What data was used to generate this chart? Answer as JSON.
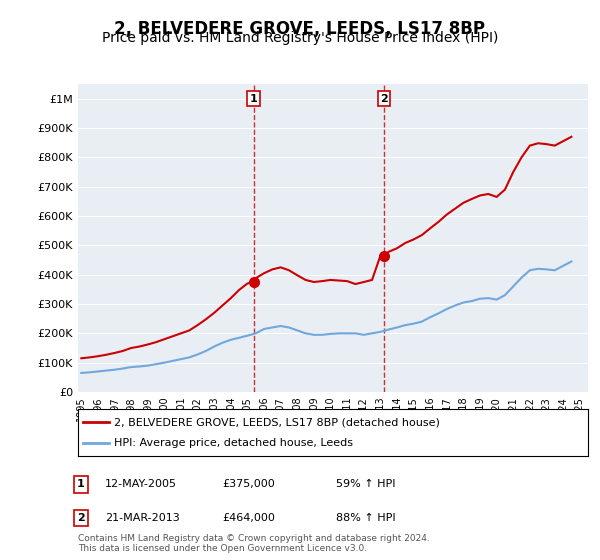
{
  "title": "2, BELVEDERE GROVE, LEEDS, LS17 8BP",
  "subtitle": "Price paid vs. HM Land Registry's House Price Index (HPI)",
  "title_fontsize": 12,
  "subtitle_fontsize": 10,
  "background_color": "#ffffff",
  "plot_bg_color": "#e8eef4",
  "grid_color": "#ffffff",
  "ylim": [
    0,
    1050000
  ],
  "yticks": [
    0,
    100000,
    200000,
    300000,
    400000,
    500000,
    600000,
    700000,
    800000,
    900000,
    1000000
  ],
  "ytick_labels": [
    "£0",
    "£100K",
    "£200K",
    "£300K",
    "£400K",
    "£500K",
    "£600K",
    "£700K",
    "£800K",
    "£900K",
    "£1M"
  ],
  "hpi_line_color": "#6fa8dc",
  "price_line_color": "#cc0000",
  "marker_color": "#cc0000",
  "vline_color": "#cc0000",
  "legend_label_red": "2, BELVEDERE GROVE, LEEDS, LS17 8BP (detached house)",
  "legend_label_blue": "HPI: Average price, detached house, Leeds",
  "sale1_label": "1",
  "sale1_date": "12-MAY-2005",
  "sale1_price": "£375,000",
  "sale1_hpi": "59% ↑ HPI",
  "sale1_year": 2005.37,
  "sale1_value": 375000,
  "sale2_label": "2",
  "sale2_date": "21-MAR-2013",
  "sale2_price": "£464,000",
  "sale2_hpi": "88% ↑ HPI",
  "sale2_year": 2013.22,
  "sale2_value": 464000,
  "footer": "Contains HM Land Registry data © Crown copyright and database right 2024.\nThis data is licensed under the Open Government Licence v3.0.",
  "hpi_years": [
    1995,
    1995.5,
    1996,
    1996.5,
    1997,
    1997.5,
    1998,
    1998.5,
    1999,
    1999.5,
    2000,
    2000.5,
    2001,
    2001.5,
    2002,
    2002.5,
    2003,
    2003.5,
    2004,
    2004.5,
    2005,
    2005.5,
    2006,
    2006.5,
    2007,
    2007.5,
    2008,
    2008.5,
    2009,
    2009.5,
    2010,
    2010.5,
    2011,
    2011.5,
    2012,
    2012.5,
    2013,
    2013.5,
    2014,
    2014.5,
    2015,
    2015.5,
    2016,
    2016.5,
    2017,
    2017.5,
    2018,
    2018.5,
    2019,
    2019.5,
    2020,
    2020.5,
    2021,
    2021.5,
    2022,
    2022.5,
    2023,
    2023.5,
    2024,
    2024.5
  ],
  "hpi_values": [
    65000,
    67000,
    70000,
    73000,
    76000,
    80000,
    85000,
    87000,
    90000,
    95000,
    100000,
    106000,
    112000,
    118000,
    128000,
    140000,
    155000,
    168000,
    178000,
    185000,
    192000,
    200000,
    215000,
    220000,
    225000,
    220000,
    210000,
    200000,
    195000,
    195000,
    198000,
    200000,
    200000,
    200000,
    195000,
    200000,
    205000,
    213000,
    220000,
    228000,
    233000,
    240000,
    255000,
    268000,
    283000,
    295000,
    305000,
    310000,
    318000,
    320000,
    315000,
    330000,
    360000,
    390000,
    415000,
    420000,
    418000,
    415000,
    430000,
    445000
  ],
  "price_years": [
    1995,
    1995.5,
    1996,
    1996.5,
    1997,
    1997.5,
    1998,
    1998.5,
    1999,
    1999.5,
    2000,
    2000.5,
    2001,
    2001.5,
    2002,
    2002.5,
    2003,
    2003.5,
    2004,
    2004.5,
    2005,
    2005.37,
    2005.5,
    2006,
    2006.5,
    2007,
    2007.5,
    2008,
    2008.5,
    2009,
    2009.5,
    2010,
    2010.5,
    2011,
    2011.5,
    2012,
    2012.5,
    2013,
    2013.22,
    2013.5,
    2014,
    2014.5,
    2015,
    2015.5,
    2016,
    2016.5,
    2017,
    2017.5,
    2018,
    2018.5,
    2019,
    2019.5,
    2020,
    2020.5,
    2021,
    2021.5,
    2022,
    2022.5,
    2023,
    2023.5,
    2024,
    2024.5
  ],
  "price_values": [
    115000,
    118000,
    122000,
    127000,
    133000,
    140000,
    150000,
    155000,
    162000,
    170000,
    180000,
    190000,
    200000,
    210000,
    228000,
    248000,
    270000,
    295000,
    320000,
    348000,
    370000,
    375000,
    388000,
    405000,
    418000,
    425000,
    415000,
    398000,
    382000,
    375000,
    378000,
    382000,
    380000,
    378000,
    368000,
    375000,
    382000,
    464000,
    464000,
    478000,
    490000,
    508000,
    520000,
    535000,
    558000,
    580000,
    605000,
    625000,
    645000,
    658000,
    670000,
    675000,
    665000,
    690000,
    750000,
    800000,
    840000,
    848000,
    845000,
    840000,
    855000,
    870000
  ],
  "xtick_years": [
    1995,
    1996,
    1997,
    1998,
    1999,
    2000,
    2001,
    2002,
    2003,
    2004,
    2005,
    2006,
    2007,
    2008,
    2009,
    2010,
    2011,
    2012,
    2013,
    2014,
    2015,
    2016,
    2017,
    2018,
    2019,
    2020,
    2021,
    2022,
    2023,
    2024,
    2025
  ]
}
